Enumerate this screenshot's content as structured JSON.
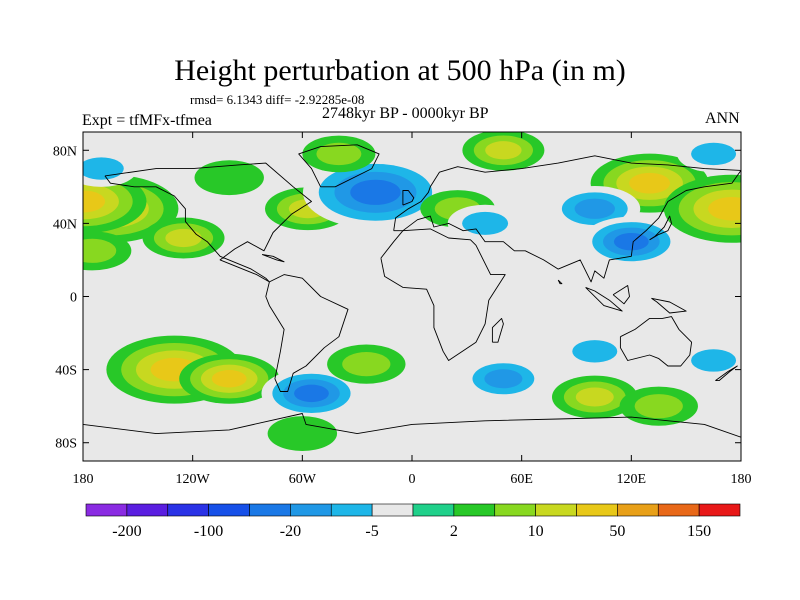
{
  "title": "Height perturbation at 500 hPa (in m)",
  "stats_line": "rmsd= 6.1343 diff= -2.92285e-08",
  "period_line": "2748kyr BP - 0000kyr BP",
  "experiment_label": "Expt = tfMFx-tfmea",
  "season_label": "ANN",
  "colors": {
    "land_outline": "#000000",
    "colorbar": [
      "#8a2be2",
      "#5a1ee0",
      "#2a32e6",
      "#1650e8",
      "#1a78e6",
      "#2098e6",
      "#1eb6e8",
      "#e8e8e8",
      "#20d08a",
      "#28c828",
      "#88d820",
      "#c8d820",
      "#e8c818",
      "#e8a018",
      "#e86818",
      "#e81818"
    ]
  },
  "chart_data": {
    "type": "heatmap",
    "title": "Height perturbation at 500 hPa (in m)",
    "xlabel": "",
    "ylabel": "",
    "xlim": [
      -180,
      180
    ],
    "ylim": [
      -90,
      90
    ],
    "x_ticks": [
      {
        "value": -180,
        "label": "180"
      },
      {
        "value": -120,
        "label": "120W"
      },
      {
        "value": -60,
        "label": "60W"
      },
      {
        "value": 0,
        "label": "0"
      },
      {
        "value": 60,
        "label": "60E"
      },
      {
        "value": 120,
        "label": "120E"
      },
      {
        "value": 180,
        "label": "180"
      }
    ],
    "y_ticks": [
      {
        "value": 80,
        "label": "80N"
      },
      {
        "value": 40,
        "label": "40N"
      },
      {
        "value": 0,
        "label": "0"
      },
      {
        "value": -40,
        "label": "40S"
      },
      {
        "value": -80,
        "label": "80S"
      }
    ],
    "colorbar_labels": [
      "-200",
      "-100",
      "-20",
      "-5",
      "2",
      "10",
      "50",
      "150"
    ],
    "fields": [
      {
        "lon": -165,
        "lat": 48,
        "value": 40
      },
      {
        "lon": -180,
        "lat": 52,
        "value": 35
      },
      {
        "lon": -170,
        "lat": 70,
        "value": -5
      },
      {
        "lon": -175,
        "lat": 25,
        "value": 8
      },
      {
        "lon": -125,
        "lat": 32,
        "value": 10
      },
      {
        "lon": -100,
        "lat": 65,
        "value": 3
      },
      {
        "lon": -60,
        "lat": 48,
        "value": -8
      },
      {
        "lon": -57,
        "lat": 48,
        "value": 12
      },
      {
        "lon": -20,
        "lat": 57,
        "value": -45
      },
      {
        "lon": -40,
        "lat": 78,
        "value": 5
      },
      {
        "lon": 25,
        "lat": 48,
        "value": 6
      },
      {
        "lon": 40,
        "lat": 40,
        "value": -6
      },
      {
        "lon": 50,
        "lat": 80,
        "value": 10
      },
      {
        "lon": 130,
        "lat": 62,
        "value": 30
      },
      {
        "lon": 175,
        "lat": 48,
        "value": 40
      },
      {
        "lon": 100,
        "lat": 48,
        "value": -15
      },
      {
        "lon": 120,
        "lat": 30,
        "value": -20
      },
      {
        "lon": 165,
        "lat": 78,
        "value": -5
      },
      {
        "lon": -130,
        "lat": -40,
        "value": 40
      },
      {
        "lon": -100,
        "lat": -45,
        "value": 20
      },
      {
        "lon": -55,
        "lat": -53,
        "value": -20
      },
      {
        "lon": -25,
        "lat": -37,
        "value": 8
      },
      {
        "lon": 50,
        "lat": -45,
        "value": -12
      },
      {
        "lon": 100,
        "lat": -55,
        "value": 12
      },
      {
        "lon": 135,
        "lat": -60,
        "value": 8
      },
      {
        "lon": 100,
        "lat": -30,
        "value": -5
      },
      {
        "lon": -60,
        "lat": -75,
        "value": 3
      },
      {
        "lon": 165,
        "lat": -35,
        "value": -5
      }
    ]
  }
}
